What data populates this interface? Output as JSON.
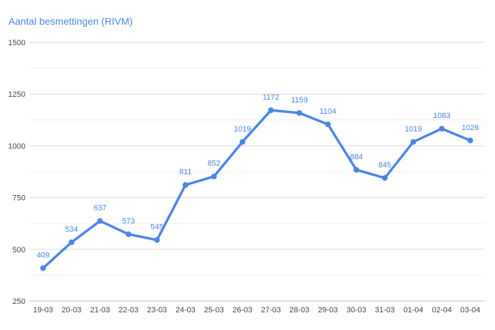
{
  "chart_data": {
    "type": "line",
    "title": "Aantal besmettingen (RIVM)",
    "xlabel": "",
    "ylabel": "",
    "categories": [
      "19-03",
      "20-03",
      "21-03",
      "22-03",
      "23-03",
      "24-03",
      "25-03",
      "26-03",
      "27-03",
      "28-03",
      "29-03",
      "30-03",
      "31-03",
      "01-04",
      "02-04",
      "03-04"
    ],
    "series": [
      {
        "name": "Aantal besmettingen",
        "values": [
          409,
          534,
          637,
          573,
          545,
          811,
          852,
          1019,
          1172,
          1159,
          1104,
          884,
          845,
          1019,
          1083,
          1026
        ],
        "color": "#4a86e8"
      }
    ],
    "ylim": [
      250,
      1500
    ],
    "yticks": [
      250,
      500,
      750,
      1000,
      1250,
      1500
    ],
    "minor_gridlines": [
      375,
      625,
      875,
      1125,
      1375
    ],
    "grid": true,
    "legend": "none",
    "data_labels": true
  }
}
